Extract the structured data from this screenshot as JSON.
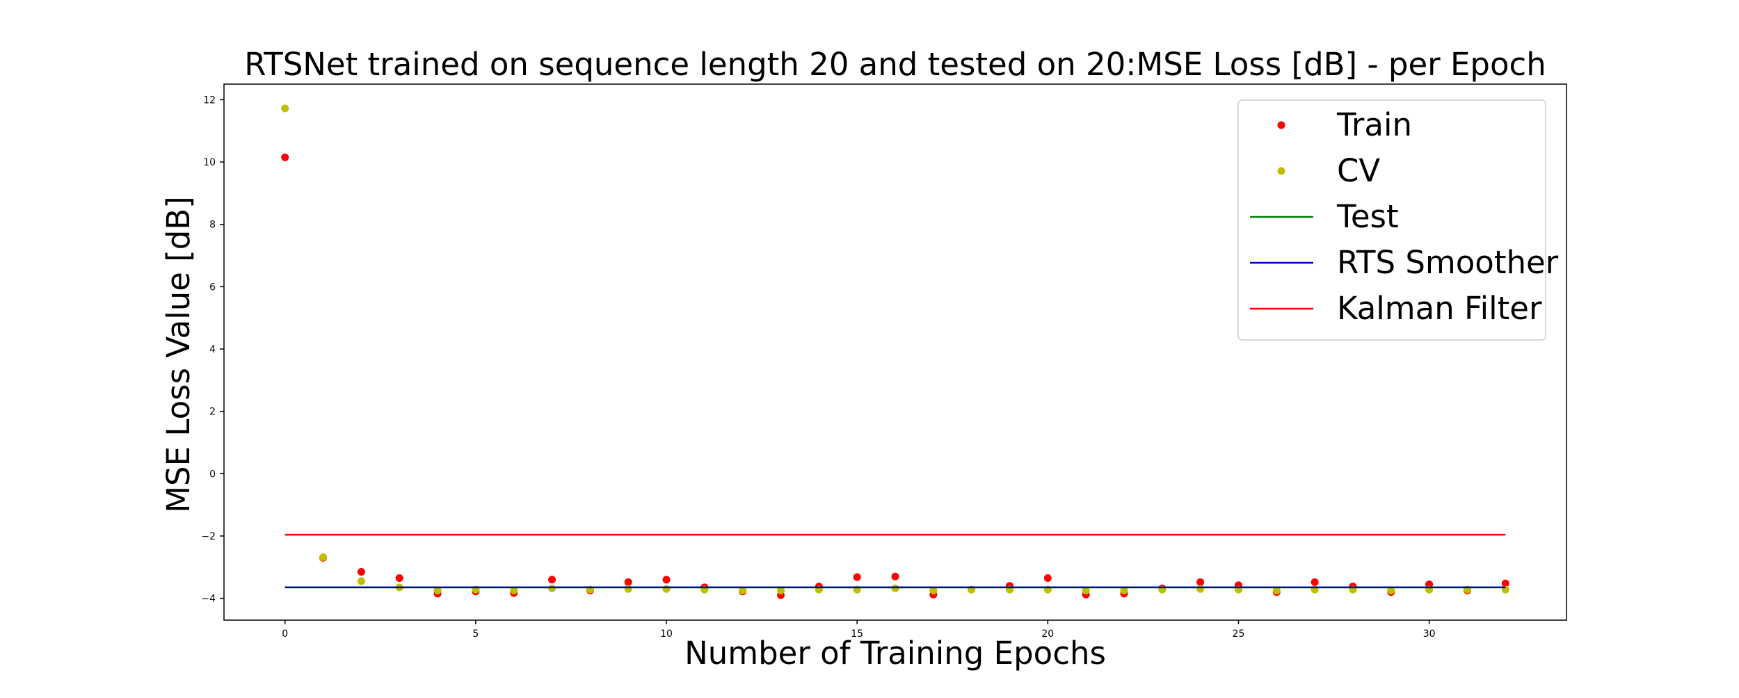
{
  "chart_data": {
    "type": "scatter",
    "title": "RTSNet trained on sequence length 20 and tested on 20:MSE Loss [dB] - per Epoch",
    "xlabel": "Number of Training Epochs",
    "ylabel": "MSE Loss Value [dB]",
    "xlim": [
      -1.6,
      33.6
    ],
    "ylim": [
      -4.7,
      12.5
    ],
    "x_ticks": [
      0,
      5,
      10,
      15,
      20,
      25,
      30
    ],
    "y_ticks": [
      -4,
      -2,
      0,
      2,
      4,
      6,
      8,
      10,
      12
    ],
    "grid": false,
    "legend_position": "top-right",
    "series": [
      {
        "name": "Train",
        "kind": "scatter",
        "color": "#ff0000",
        "x": [
          0,
          1,
          2,
          3,
          4,
          5,
          6,
          7,
          8,
          9,
          10,
          11,
          12,
          13,
          14,
          15,
          16,
          17,
          18,
          19,
          20,
          21,
          22,
          23,
          24,
          25,
          26,
          27,
          28,
          29,
          30,
          31,
          32
        ],
        "values": [
          10.15,
          -2.7,
          -3.15,
          -3.35,
          -3.85,
          -3.78,
          -3.83,
          -3.4,
          -3.75,
          -3.48,
          -3.4,
          -3.65,
          -3.78,
          -3.9,
          -3.62,
          -3.32,
          -3.3,
          -3.88,
          -3.72,
          -3.6,
          -3.35,
          -3.88,
          -3.85,
          -3.68,
          -3.48,
          -3.58,
          -3.8,
          -3.48,
          -3.62,
          -3.8,
          -3.55,
          -3.75,
          -3.52
        ]
      },
      {
        "name": "CV",
        "kind": "scatter",
        "color": "#bfbf00",
        "x": [
          0,
          1,
          2,
          3,
          4,
          5,
          6,
          7,
          8,
          9,
          10,
          11,
          12,
          13,
          14,
          15,
          16,
          17,
          18,
          19,
          20,
          21,
          22,
          23,
          24,
          25,
          26,
          27,
          28,
          29,
          30,
          31,
          32
        ],
        "values": [
          11.72,
          -2.68,
          -3.45,
          -3.65,
          -3.75,
          -3.72,
          -3.75,
          -3.68,
          -3.72,
          -3.7,
          -3.7,
          -3.72,
          -3.75,
          -3.75,
          -3.72,
          -3.72,
          -3.68,
          -3.75,
          -3.72,
          -3.72,
          -3.72,
          -3.75,
          -3.75,
          -3.72,
          -3.7,
          -3.72,
          -3.75,
          -3.72,
          -3.72,
          -3.75,
          -3.72,
          -3.72,
          -3.72
        ]
      },
      {
        "name": "Test",
        "kind": "line",
        "color": "#008000",
        "x": [
          0,
          32
        ],
        "values": [
          -3.65,
          -3.65
        ]
      },
      {
        "name": "RTS Smoother",
        "kind": "line",
        "color": "#0000bf",
        "x": [
          0,
          32
        ],
        "values": [
          -3.65,
          -3.65
        ]
      },
      {
        "name": "Kalman Filter",
        "kind": "line",
        "color": "#ff0000",
        "x": [
          0,
          32
        ],
        "values": [
          -1.96,
          -1.96
        ]
      }
    ]
  }
}
